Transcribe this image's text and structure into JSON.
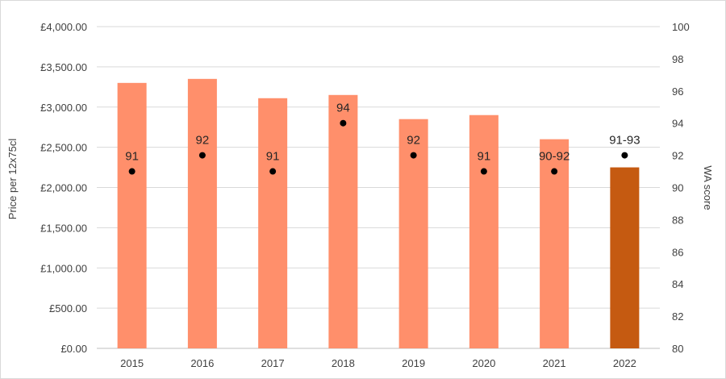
{
  "chart_data": {
    "type": "bar",
    "categories": [
      "2015",
      "2016",
      "2017",
      "2018",
      "2019",
      "2020",
      "2021",
      "2022"
    ],
    "series": [
      {
        "axis": "left",
        "values": [
          3300,
          3350,
          3110,
          3150,
          2850,
          2900,
          2600,
          2250
        ],
        "colors": [
          "#ff8f6b",
          "#ff8f6b",
          "#ff8f6b",
          "#ff8f6b",
          "#ff8f6b",
          "#ff8f6b",
          "#ff8f6b",
          "#c55a11"
        ]
      },
      {
        "type": "scatter",
        "axis": "right",
        "values": [
          91,
          92,
          91,
          94,
          92,
          91,
          91,
          92
        ],
        "labels": [
          "91",
          "92",
          "91",
          "94",
          "92",
          "91",
          "90-92",
          "91-93"
        ],
        "color": "#000000"
      }
    ],
    "ylabel": "Price per 12x75cl",
    "y2label": "WA score",
    "ylim": [
      0,
      4000
    ],
    "y2lim": [
      80,
      100
    ],
    "yticks": [
      "£0.00",
      "£500.00",
      "£1,000.00",
      "£1,500.00",
      "£2,000.00",
      "£2,500.00",
      "£3,000.00",
      "£3,500.00",
      "£4,000.00"
    ],
    "y2ticks": [
      "80",
      "82",
      "84",
      "86",
      "88",
      "90",
      "92",
      "94",
      "96",
      "98",
      "100"
    ],
    "grid": true,
    "legend": "none"
  }
}
